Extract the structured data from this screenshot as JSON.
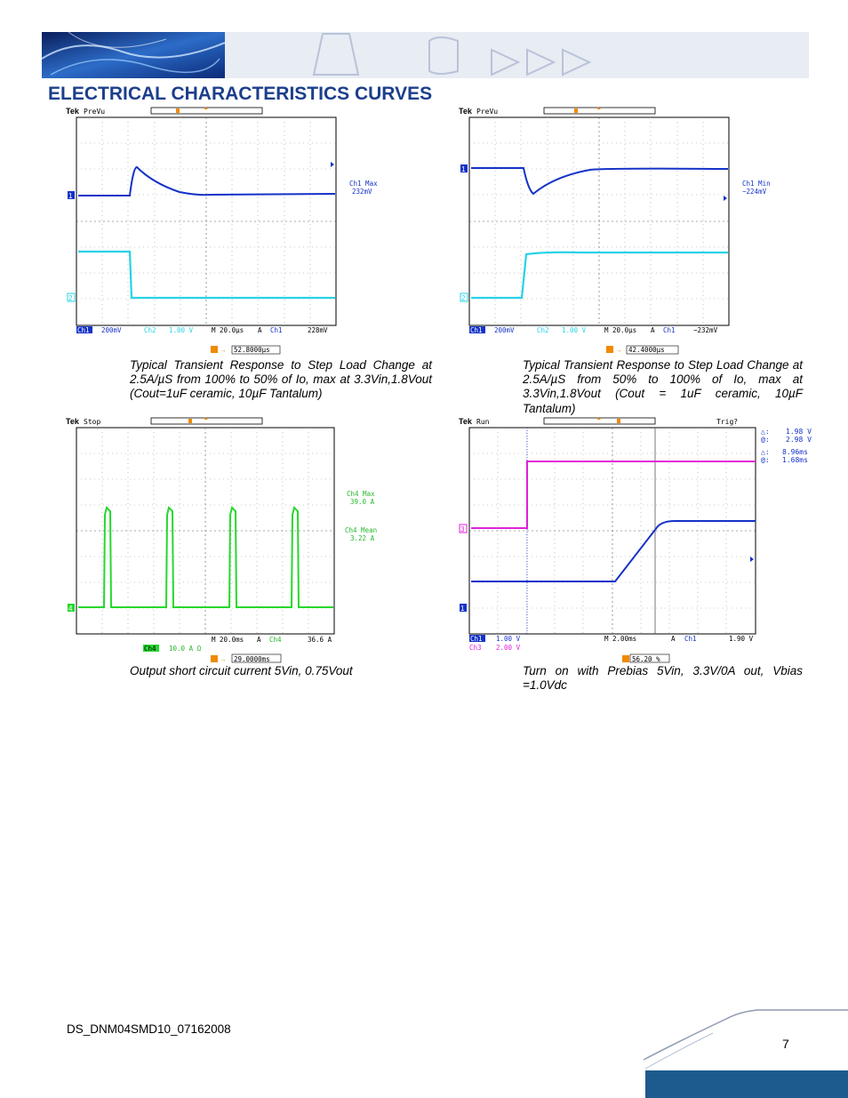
{
  "header": {
    "title": "ELECTRICAL CHARACTERISTICS CURVES"
  },
  "colors": {
    "title": "#1c3f8c",
    "ch1": "#1532c8",
    "ch2": "#27d3e6",
    "ch3": "#e021d8",
    "ch4": "#27d82d",
    "trigger": "#f08a00",
    "footer_bar": "#1d5a8d"
  },
  "figures": [
    {
      "scope_status": "PreVu",
      "meas_label": "Ch1 Max",
      "meas_value": "232mV",
      "ch_a_marker": "1",
      "ch_b_marker": "2",
      "ch_a_label": "Ch1",
      "ch_a_scale": "200mV",
      "ch_b_label": "Ch2",
      "ch_b_scale": "1.00 V",
      "timebase": "M 20.0µs",
      "trig_mode": "A",
      "trig_source": "Ch1",
      "trig_level": "228mV",
      "trig_position": "52.8000µs",
      "caption": "Typical Transient Response to Step Load Change at 2.5A/µS from 100% to 50% of Io, max at 3.3Vin,1.8Vout (Cout=1uF ceramic, 10µF Tantalum)"
    },
    {
      "scope_status": "PreVu",
      "meas_label": "Ch1 Min",
      "meas_value": "−224mV",
      "ch_a_marker": "1",
      "ch_b_marker": "2",
      "ch_a_label": "Ch1",
      "ch_a_scale": "200mV",
      "ch_b_label": "Ch2",
      "ch_b_scale": "1.00 V",
      "timebase": "M 20.0µs",
      "trig_mode": "A",
      "trig_source": "Ch1",
      "trig_level": "−232mV",
      "trig_position": "42.4000µs",
      "caption": "Typical Transient Response to Step Load Change at 2.5A/µS from 50% to 100% of Io, max at 3.3Vin,1.8Vout (Cout = 1uF ceramic, 10µF Tantalum)"
    },
    {
      "scope_status": "Stop",
      "meas1_label": "Ch4 Max",
      "meas1_value": "39.0 A",
      "meas2_label": "Ch4 Mean",
      "meas2_value": "3.22 A",
      "ch_marker": "4",
      "ch_label": "Ch4",
      "ch_scale": "10.0 A Ω",
      "timebase": "M 20.0ms",
      "trig_mode": "A",
      "trig_source": "Ch4",
      "trig_level": "36.6 A",
      "trig_position": "29.0000ms",
      "caption": "Output short circuit current 5Vin, 0.75Vout"
    },
    {
      "scope_status": "Run",
      "trig_state": "Trig?",
      "cursor_delta_symbol": "△:",
      "cursor_at_symbol": "@:",
      "cursor_v_delta": "1.98 V",
      "cursor_v_at": "2.98 V",
      "cursor_t_delta": "8.96ms",
      "cursor_t_at": "1.68ms",
      "ch_a_marker": "3",
      "ch_b_marker": "1",
      "ch_a_label": "Ch1",
      "ch_a_scale": "1.00 V",
      "ch_b_label": "Ch3",
      "ch_b_scale": "2.00 V",
      "timebase": "M 2.00ms",
      "trig_mode": "A",
      "trig_source": "Ch1",
      "trig_level": "1.90 V",
      "trig_position": "56.20 %",
      "caption": "Turn on with Prebias 5Vin, 3.3V/0A out, Vbias =1.0Vdc"
    }
  ],
  "footer": {
    "doc_code": "DS_DNM04SMD10_07162008",
    "page_number": "7"
  }
}
